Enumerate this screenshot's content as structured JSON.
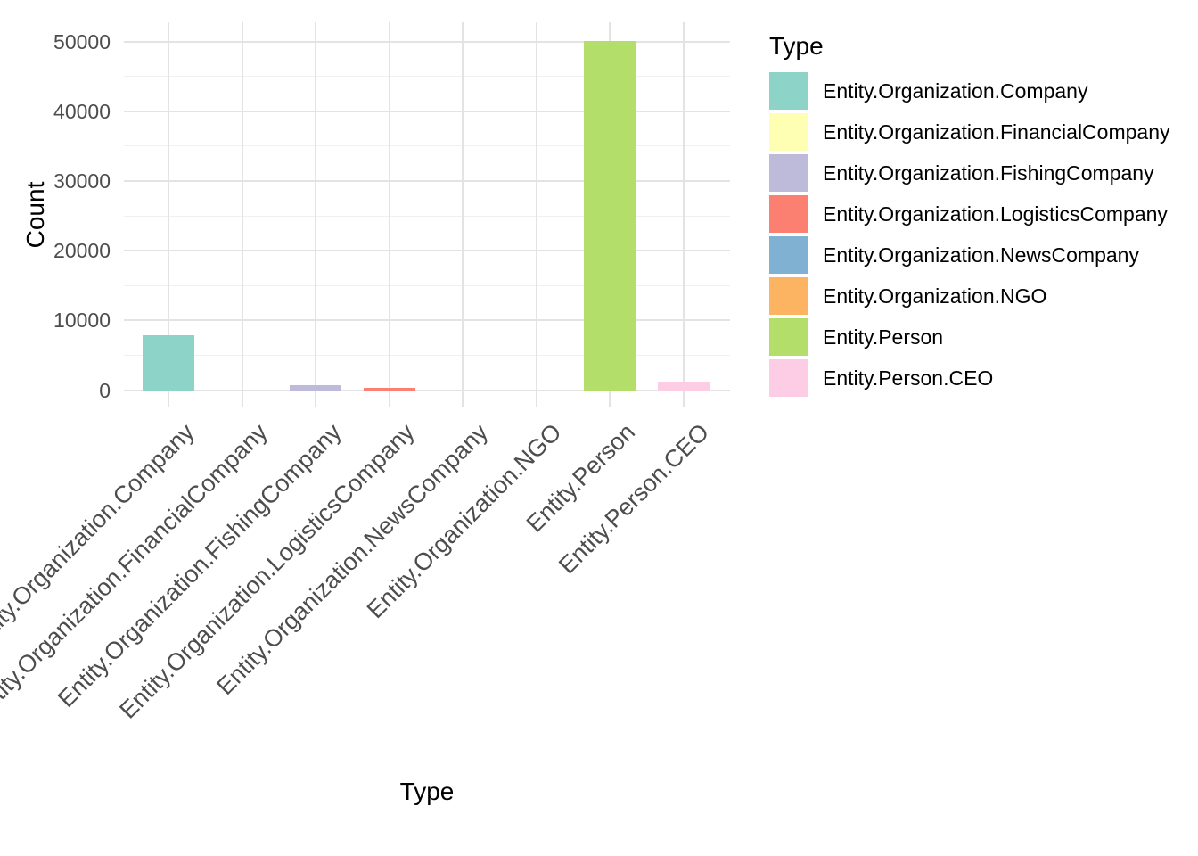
{
  "chart": {
    "y_axis_title": "Count",
    "x_axis_title": "Type",
    "legend_title": "Type"
  },
  "chart_data": {
    "type": "bar",
    "title": "",
    "xlabel": "Type",
    "ylabel": "Count",
    "legend_position": "right",
    "grid": "major and minor horizontal, major vertical at categories",
    "categories": [
      "Entity.Organization.Company",
      "Entity.Organization.FinancialCompany",
      "Entity.Organization.FishingCompany",
      "Entity.Organization.LogisticsCompany",
      "Entity.Organization.NewsCompany",
      "Entity.Organization.NGO",
      "Entity.Person",
      "Entity.Person.CEO"
    ],
    "values": [
      7950,
      25,
      730,
      380,
      40,
      60,
      50150,
      1250
    ],
    "colors": [
      "#8DD3C7",
      "#FFFFB3",
      "#BEBADA",
      "#FB8072",
      "#80B1D3",
      "#FDB462",
      "#B3DE69",
      "#FCCDE5"
    ],
    "y_ticks": [
      0,
      10000,
      20000,
      30000,
      40000,
      50000
    ],
    "y_minor_ticks": [
      5000,
      15000,
      25000,
      35000,
      45000
    ],
    "ylim": [
      0,
      52800
    ]
  }
}
